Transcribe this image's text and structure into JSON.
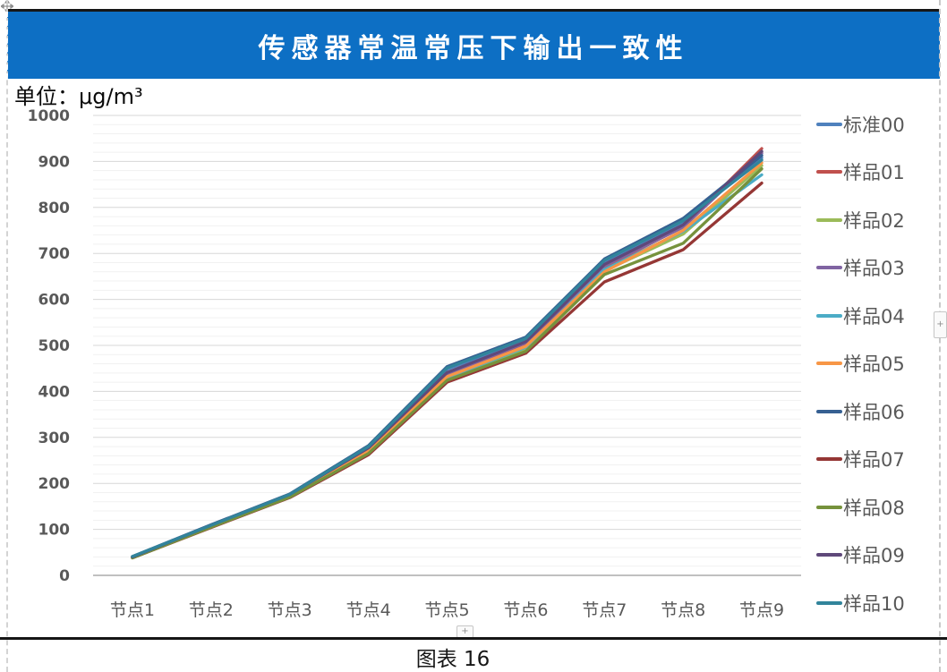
{
  "page": {
    "title": "传感器常温常压下输出一致性",
    "unit_label": "单位：μg/m³",
    "caption": "图表 16",
    "banner_color": "#0d6fc4",
    "plus_handle": "+"
  },
  "chart_data": {
    "type": "line",
    "title": "传感器常温常压下输出一致性",
    "unit": "μg/m³",
    "xlabel": "",
    "ylabel": "μg/m³",
    "categories": [
      "节点1",
      "节点2",
      "节点3",
      "节点4",
      "节点5",
      "节点6",
      "节点7",
      "节点8",
      "节点9"
    ],
    "y_ticks": [
      "0",
      "100",
      "200",
      "300",
      "400",
      "500",
      "600",
      "700",
      "800",
      "900",
      "1000"
    ],
    "ylim": [
      0,
      1000
    ],
    "y_major_step": 100,
    "y_minor_step": 20,
    "grid": true,
    "legend_position": "right",
    "axis_label_color": "#595959",
    "series": [
      {
        "name": "标准00",
        "color": "#4F81BD",
        "values": [
          40,
          108,
          175,
          278,
          448,
          512,
          682,
          768,
          908
        ]
      },
      {
        "name": "样品01",
        "color": "#C0504D",
        "values": [
          39,
          107,
          174,
          275,
          436,
          505,
          670,
          758,
          928
        ]
      },
      {
        "name": "样品02",
        "color": "#9BBB59",
        "values": [
          38,
          105,
          171,
          268,
          428,
          492,
          662,
          742,
          891
        ]
      },
      {
        "name": "样品03",
        "color": "#8064A2",
        "values": [
          40,
          108,
          174,
          274,
          438,
          506,
          673,
          757,
          918
        ]
      },
      {
        "name": "样品04",
        "color": "#4BACC6",
        "values": [
          39,
          106,
          172,
          270,
          430,
          496,
          665,
          748,
          871
        ]
      },
      {
        "name": "样品05",
        "color": "#F79646",
        "values": [
          39,
          106,
          172,
          271,
          432,
          498,
          660,
          750,
          897
        ]
      },
      {
        "name": "样品06",
        "color": "#366092",
        "values": [
          41,
          110,
          177,
          282,
          454,
          518,
          688,
          776,
          913
        ]
      },
      {
        "name": "样品07",
        "color": "#953735",
        "values": [
          38,
          104,
          169,
          262,
          420,
          483,
          638,
          708,
          853
        ]
      },
      {
        "name": "样品08",
        "color": "#76923C",
        "values": [
          38,
          105,
          170,
          265,
          424,
          487,
          654,
          722,
          884
        ]
      },
      {
        "name": "样品09",
        "color": "#5F497A",
        "values": [
          40,
          109,
          176,
          277,
          441,
          508,
          676,
          762,
          922
        ]
      },
      {
        "name": "样品10",
        "color": "#31849B",
        "values": [
          41,
          109,
          176,
          280,
          451,
          515,
          685,
          771,
          903
        ]
      }
    ]
  }
}
